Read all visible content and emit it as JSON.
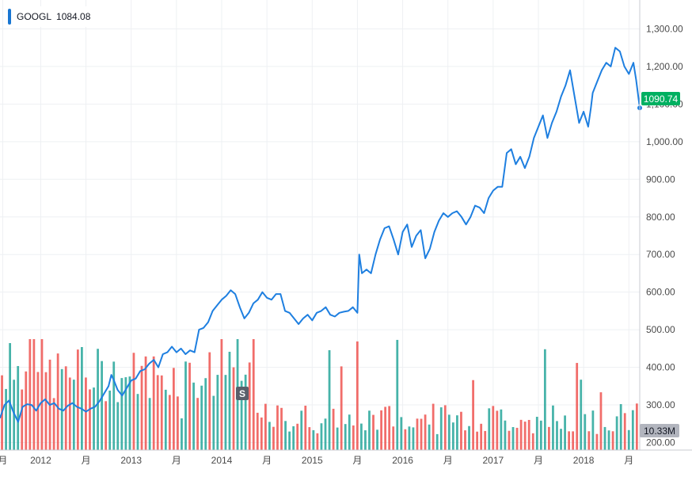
{
  "legend": {
    "symbol": "GOOGL",
    "value": "1084.08",
    "color": "#1976d2"
  },
  "price_tag": {
    "label": "1090.74",
    "color": "#00b061"
  },
  "volume_tag": {
    "label": "10.33M",
    "color": "#b2b5be"
  },
  "split_marker": {
    "label": "S"
  },
  "colors": {
    "line": "#1e7fe0",
    "vol_up": "#26a69a",
    "vol_down": "#ef5350",
    "grid": "#eef0f3",
    "axis_text": "#4a4a4a"
  },
  "chart_data": {
    "type": "line",
    "title": "GOOGL",
    "y_axis": {
      "ticks": [
        200,
        300,
        400,
        500,
        600,
        700,
        800,
        900,
        1000,
        1100,
        1200,
        1300
      ],
      "tick_labels": [
        "200.00",
        "300.00",
        "400.00",
        "500.00",
        "600.00",
        "700.00",
        "800.00",
        "900.00",
        "1,000.00",
        "1,100.00",
        "1,200.00",
        "1,300.00"
      ],
      "range": [
        180,
        1360
      ]
    },
    "x_axis": {
      "range": [
        2011.55,
        2018.62
      ],
      "ticks": [
        {
          "x": 2011.58,
          "label": "月"
        },
        {
          "x": 2012.0,
          "label": "2012"
        },
        {
          "x": 2012.5,
          "label": "月"
        },
        {
          "x": 2013.0,
          "label": "2013"
        },
        {
          "x": 2013.5,
          "label": "月"
        },
        {
          "x": 2014.0,
          "label": "2014"
        },
        {
          "x": 2014.5,
          "label": "月"
        },
        {
          "x": 2015.0,
          "label": "2015"
        },
        {
          "x": 2015.5,
          "label": "月"
        },
        {
          "x": 2016.0,
          "label": "2016"
        },
        {
          "x": 2016.5,
          "label": "月"
        },
        {
          "x": 2017.0,
          "label": "2017"
        },
        {
          "x": 2017.5,
          "label": "月"
        },
        {
          "x": 2018.0,
          "label": "2018"
        },
        {
          "x": 2018.5,
          "label": "月"
        }
      ]
    },
    "series": [
      {
        "name": "GOOGL",
        "x": [
          2011.55,
          2011.6,
          2011.65,
          2011.7,
          2011.75,
          2011.8,
          2011.85,
          2011.9,
          2011.95,
          2012.0,
          2012.05,
          2012.1,
          2012.15,
          2012.2,
          2012.25,
          2012.3,
          2012.35,
          2012.4,
          2012.45,
          2012.5,
          2012.55,
          2012.6,
          2012.65,
          2012.7,
          2012.75,
          2012.78,
          2012.8,
          2012.85,
          2012.9,
          2012.95,
          2013.0,
          2013.05,
          2013.1,
          2013.15,
          2013.2,
          2013.25,
          2013.3,
          2013.35,
          2013.4,
          2013.45,
          2013.5,
          2013.55,
          2013.6,
          2013.65,
          2013.7,
          2013.75,
          2013.8,
          2013.85,
          2013.9,
          2013.95,
          2014.0,
          2014.05,
          2014.1,
          2014.15,
          2014.2,
          2014.25,
          2014.3,
          2014.35,
          2014.4,
          2014.45,
          2014.5,
          2014.55,
          2014.6,
          2014.65,
          2014.7,
          2014.75,
          2014.8,
          2014.85,
          2014.9,
          2014.95,
          2015.0,
          2015.05,
          2015.1,
          2015.15,
          2015.2,
          2015.25,
          2015.3,
          2015.35,
          2015.4,
          2015.45,
          2015.5,
          2015.52,
          2015.55,
          2015.6,
          2015.65,
          2015.7,
          2015.75,
          2015.8,
          2015.85,
          2015.9,
          2015.95,
          2016.0,
          2016.05,
          2016.1,
          2016.15,
          2016.2,
          2016.25,
          2016.3,
          2016.35,
          2016.4,
          2016.45,
          2016.5,
          2016.55,
          2016.6,
          2016.65,
          2016.7,
          2016.75,
          2016.8,
          2016.85,
          2016.9,
          2016.95,
          2017.0,
          2017.05,
          2017.1,
          2017.15,
          2017.2,
          2017.25,
          2017.3,
          2017.35,
          2017.4,
          2017.45,
          2017.5,
          2017.55,
          2017.6,
          2017.65,
          2017.7,
          2017.75,
          2017.8,
          2017.85,
          2017.9,
          2017.95,
          2018.0,
          2018.05,
          2018.08,
          2018.1,
          2018.15,
          2018.2,
          2018.25,
          2018.3,
          2018.35,
          2018.4,
          2018.45,
          2018.5,
          2018.55,
          2018.58,
          2018.62
        ],
        "y": [
          265,
          300,
          312,
          280,
          255,
          295,
          302,
          300,
          285,
          305,
          315,
          300,
          305,
          290,
          285,
          298,
          305,
          295,
          290,
          282,
          290,
          295,
          310,
          330,
          350,
          380,
          370,
          340,
          325,
          345,
          365,
          370,
          390,
          395,
          410,
          420,
          400,
          435,
          440,
          455,
          440,
          450,
          435,
          445,
          440,
          500,
          505,
          520,
          550,
          565,
          580,
          590,
          605,
          595,
          560,
          530,
          545,
          570,
          580,
          600,
          585,
          580,
          595,
          595,
          550,
          545,
          530,
          515,
          530,
          540,
          525,
          545,
          550,
          560,
          540,
          535,
          545,
          548,
          550,
          560,
          545,
          700,
          650,
          660,
          650,
          700,
          740,
          770,
          775,
          740,
          700,
          760,
          780,
          720,
          750,
          765,
          690,
          715,
          760,
          790,
          810,
          800,
          810,
          815,
          800,
          780,
          800,
          830,
          825,
          810,
          850,
          870,
          880,
          880,
          970,
          980,
          940,
          960,
          930,
          960,
          1010,
          1040,
          1070,
          1010,
          1050,
          1080,
          1120,
          1150,
          1190,
          1120,
          1050,
          1080,
          1040,
          1090,
          1130,
          1160,
          1190,
          1210,
          1200,
          1250,
          1240,
          1200,
          1180,
          1210,
          1165,
          1090
        ]
      }
    ],
    "volume": {
      "x_start": 2011.56,
      "x_end": 2018.62,
      "count": 160,
      "display_max": 420
    }
  }
}
